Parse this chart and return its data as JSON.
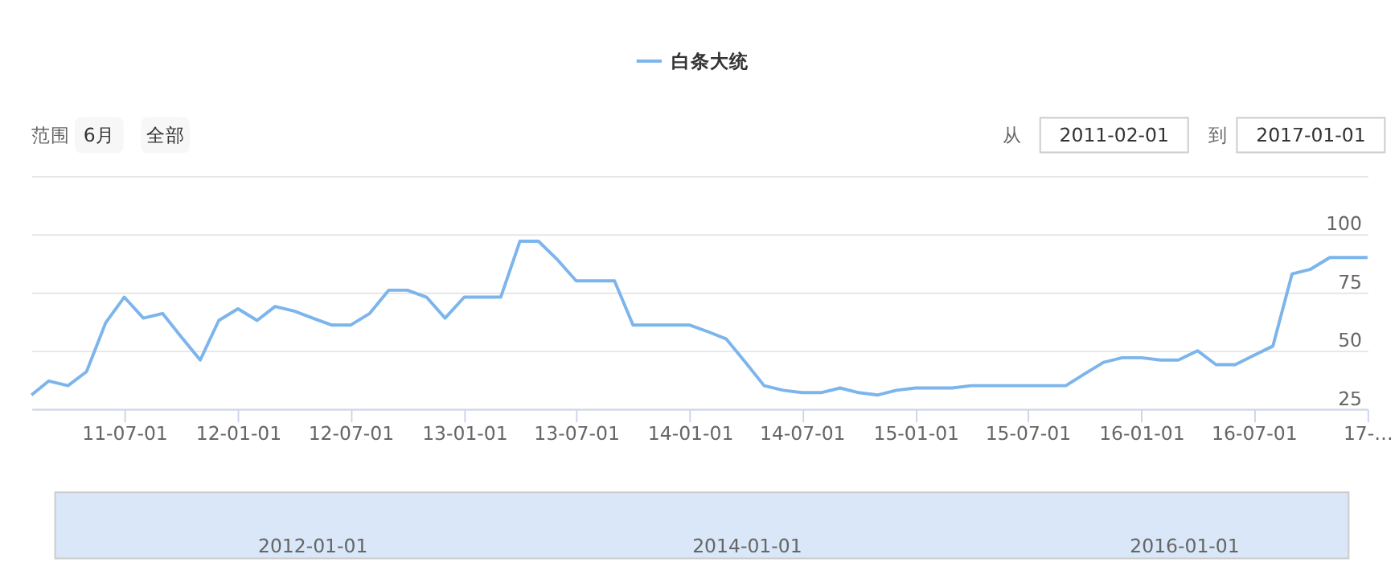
{
  "chart_data": {
    "type": "line",
    "legend": "top",
    "annotations": [
      "范围",
      "6月",
      "全部",
      "从",
      "2011-02-01",
      "到",
      "2017-01-01",
      "2012-01-01",
      "2014-01-01",
      "2016-01-01"
    ],
    "x": [
      "2011-02",
      "2011-03",
      "2011-04",
      "2011-05",
      "2011-06",
      "2011-07",
      "2011-08",
      "2011-09",
      "2011-10",
      "2011-11",
      "2011-12",
      "2012-01",
      "2012-02",
      "2012-03",
      "2012-04",
      "2012-05",
      "2012-06",
      "2012-07",
      "2012-08",
      "2012-09",
      "2012-10",
      "2012-11",
      "2012-12",
      "2013-01",
      "2013-02",
      "2013-03",
      "2013-04",
      "2013-05",
      "2013-06",
      "2013-07",
      "2013-08",
      "2013-09",
      "2013-10",
      "2013-11",
      "2013-12",
      "2014-01",
      "2014-02",
      "2014-03",
      "2014-04",
      "2014-05",
      "2014-06",
      "2014-07",
      "2014-08",
      "2014-09",
      "2014-10",
      "2014-11",
      "2014-12",
      "2015-01",
      "2015-02",
      "2015-03",
      "2015-04",
      "2015-05",
      "2015-06",
      "2015-07",
      "2015-08",
      "2015-09",
      "2015-10",
      "2015-11",
      "2015-12",
      "2016-01",
      "2016-02",
      "2016-03",
      "2016-04",
      "2016-05",
      "2016-06",
      "2016-07",
      "2016-08",
      "2016-09",
      "2016-10",
      "2016-11",
      "2016-12",
      "2017-01"
    ],
    "series": [
      {
        "name": "白条大统",
        "color": "#7cb5ec",
        "values": [
          31,
          37,
          35,
          41,
          62,
          73,
          64,
          66,
          56,
          46,
          63,
          68,
          63,
          69,
          67,
          64,
          61,
          61,
          66,
          76,
          76,
          73,
          64,
          73,
          73,
          73,
          97,
          97,
          89,
          80,
          80,
          80,
          61,
          61,
          61,
          61,
          58,
          55,
          45,
          35,
          33,
          32,
          32,
          34,
          32,
          31,
          33,
          34,
          34,
          34,
          35,
          35,
          35,
          35,
          35,
          35,
          40,
          45,
          47,
          47,
          46,
          46,
          50,
          44,
          44,
          48,
          52,
          83,
          85,
          90,
          90,
          90
        ]
      }
    ],
    "xlim": [
      "2011-02-01",
      "2017-01-01"
    ],
    "xticks": [
      {
        "value": "2011-07-01",
        "label": "11-07-01"
      },
      {
        "value": "2012-01-01",
        "label": "12-01-01"
      },
      {
        "value": "2012-07-01",
        "label": "12-07-01"
      },
      {
        "value": "2013-01-01",
        "label": "13-01-01"
      },
      {
        "value": "2013-07-01",
        "label": "13-07-01"
      },
      {
        "value": "2014-01-01",
        "label": "14-01-01"
      },
      {
        "value": "2014-07-01",
        "label": "14-07-01"
      },
      {
        "value": "2015-01-01",
        "label": "15-01-01"
      },
      {
        "value": "2015-07-01",
        "label": "15-07-01"
      },
      {
        "value": "2016-01-01",
        "label": "16-01-01"
      },
      {
        "value": "2016-07-01",
        "label": "16-07-01"
      },
      {
        "value": "2017-01-01",
        "label": "17-…"
      }
    ],
    "ylim": [
      25,
      125
    ],
    "yticks": [
      25,
      50,
      75,
      100,
      {
        "value": 125,
        "label": null
      }
    ],
    "grid": "y"
  }
}
